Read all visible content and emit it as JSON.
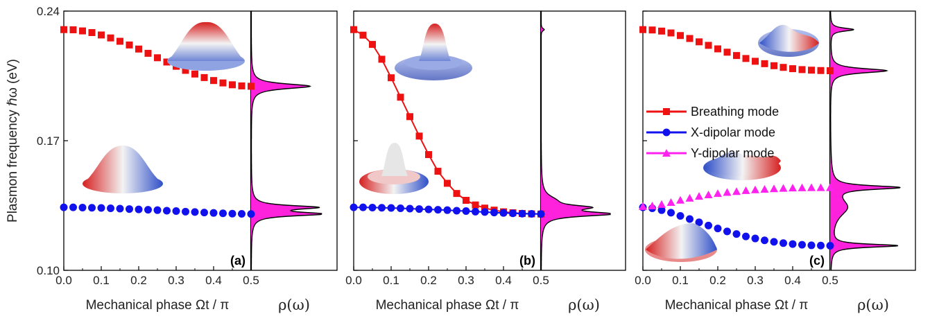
{
  "ylabel": "Plasmon frequency ℏω (eV)",
  "xlabel": "Mechanical phase Ωt / π",
  "rho_label": "ρ(ω)",
  "ylim": [
    0.1,
    0.24
  ],
  "yticks": [
    "0.10",
    "0.17",
    "0.24"
  ],
  "xlim": [
    0.0,
    0.5
  ],
  "xticks": [
    "0.0",
    "0.1",
    "0.2",
    "0.3",
    "0.4",
    "0.5"
  ],
  "colors": {
    "breathing": "#ee1111",
    "x_dipolar": "#1111ee",
    "y_dipolar": "#ff22ee",
    "dos_fill": "#ff22dd"
  },
  "legend": [
    {
      "name": "Breathing mode",
      "marker": "square",
      "color": "#ee1111"
    },
    {
      "name": "X-dipolar  mode",
      "marker": "circle",
      "color": "#1111ee"
    },
    {
      "name": "Y-dipolar  mode",
      "marker": "triangle",
      "color": "#ff22ee"
    }
  ],
  "chart_data": [
    {
      "type": "scatter",
      "panel": "(a)",
      "x": [
        0.0,
        0.025,
        0.05,
        0.075,
        0.1,
        0.125,
        0.15,
        0.175,
        0.2,
        0.225,
        0.25,
        0.275,
        0.3,
        0.325,
        0.35,
        0.375,
        0.4,
        0.425,
        0.45,
        0.475,
        0.5
      ],
      "series": [
        {
          "name": "Breathing mode",
          "values": [
            0.23,
            0.2299,
            0.2293,
            0.2284,
            0.2271,
            0.2255,
            0.2237,
            0.2217,
            0.2195,
            0.2172,
            0.2148,
            0.2125,
            0.2102,
            0.208,
            0.206,
            0.2041,
            0.2025,
            0.2012,
            0.2002,
            0.1996,
            0.1994
          ]
        },
        {
          "name": "X-dipolar  mode",
          "values": [
            0.134,
            0.134,
            0.1339,
            0.1338,
            0.1337,
            0.1335,
            0.1333,
            0.1331,
            0.1329,
            0.1327,
            0.1325,
            0.1322,
            0.132,
            0.1317,
            0.1315,
            0.1312,
            0.131,
            0.1308,
            0.1306,
            0.1305,
            0.1304
          ]
        }
      ],
      "dos_peaks": [
        {
          "center": 0.1994,
          "height": 0.88,
          "width": 0.0016
        },
        {
          "center": 0.1304,
          "height": 1.0,
          "width": 0.0012
        },
        {
          "center": 0.134,
          "height": 0.92,
          "width": 0.0012
        }
      ]
    },
    {
      "type": "line",
      "panel": "(b)",
      "x": [
        0.0,
        0.025,
        0.05,
        0.075,
        0.1,
        0.125,
        0.15,
        0.175,
        0.2,
        0.225,
        0.25,
        0.275,
        0.3,
        0.325,
        0.35,
        0.375,
        0.4,
        0.425,
        0.45,
        0.475,
        0.5
      ],
      "series": [
        {
          "name": "Breathing mode",
          "values": [
            0.23,
            0.227,
            0.222,
            0.214,
            0.204,
            0.1935,
            0.183,
            0.1725,
            0.1625,
            0.1535,
            0.147,
            0.1415,
            0.1378,
            0.1353,
            0.1336,
            0.1325,
            0.1316,
            0.1311,
            0.1307,
            0.1305,
            0.1304
          ]
        },
        {
          "name": "X-dipolar  mode",
          "values": [
            0.134,
            0.134,
            0.1339,
            0.1338,
            0.1337,
            0.1335,
            0.1333,
            0.1331,
            0.1329,
            0.1327,
            0.1325,
            0.1322,
            0.132,
            0.1317,
            0.1315,
            0.1312,
            0.131,
            0.1308,
            0.1306,
            0.1305,
            0.1304
          ]
        }
      ],
      "dos_peaks": [
        {
          "center": 0.23,
          "height": 0.05,
          "width": 0.0008
        },
        {
          "center": 0.1304,
          "height": 1.0,
          "width": 0.0014
        },
        {
          "center": 0.134,
          "height": 0.6,
          "width": 0.0014
        },
        {
          "center": 0.138,
          "height": 0.15,
          "width": 0.003
        }
      ]
    },
    {
      "type": "scatter",
      "panel": "(c)",
      "x": [
        0.0,
        0.025,
        0.05,
        0.075,
        0.1,
        0.125,
        0.15,
        0.175,
        0.2,
        0.225,
        0.25,
        0.275,
        0.3,
        0.325,
        0.35,
        0.375,
        0.4,
        0.425,
        0.45,
        0.475,
        0.5
      ],
      "series": [
        {
          "name": "Breathing mode",
          "values": [
            0.23,
            0.2298,
            0.2292,
            0.2282,
            0.2268,
            0.2252,
            0.2234,
            0.2215,
            0.2196,
            0.2178,
            0.216,
            0.2144,
            0.2129,
            0.2116,
            0.2105,
            0.2096,
            0.2089,
            0.2084,
            0.2081,
            0.2079,
            0.2078
          ]
        },
        {
          "name": "X-dipolar  mode",
          "values": [
            0.134,
            0.1335,
            0.1325,
            0.1311,
            0.1294,
            0.1277,
            0.1259,
            0.1242,
            0.1226,
            0.121,
            0.1196,
            0.1183,
            0.1172,
            0.1162,
            0.1154,
            0.1147,
            0.1142,
            0.1138,
            0.1135,
            0.1134,
            0.1133
          ]
        },
        {
          "name": "Y-dipolar  mode",
          "values": [
            0.1345,
            0.1348,
            0.1356,
            0.1367,
            0.1379,
            0.139,
            0.14,
            0.1408,
            0.1415,
            0.1421,
            0.1426,
            0.1431,
            0.1435,
            0.1438,
            0.1441,
            0.1443,
            0.1445,
            0.1446,
            0.1447,
            0.1447,
            0.1447
          ]
        }
      ],
      "dos_peaks": [
        {
          "center": 0.23,
          "height": 0.35,
          "width": 0.001
        },
        {
          "center": 0.2078,
          "height": 0.85,
          "width": 0.0014
        },
        {
          "center": 0.1447,
          "height": 1.0,
          "width": 0.0012
        },
        {
          "center": 0.1133,
          "height": 1.0,
          "width": 0.001
        },
        {
          "center": 0.134,
          "height": 0.25,
          "width": 0.006
        }
      ]
    }
  ]
}
